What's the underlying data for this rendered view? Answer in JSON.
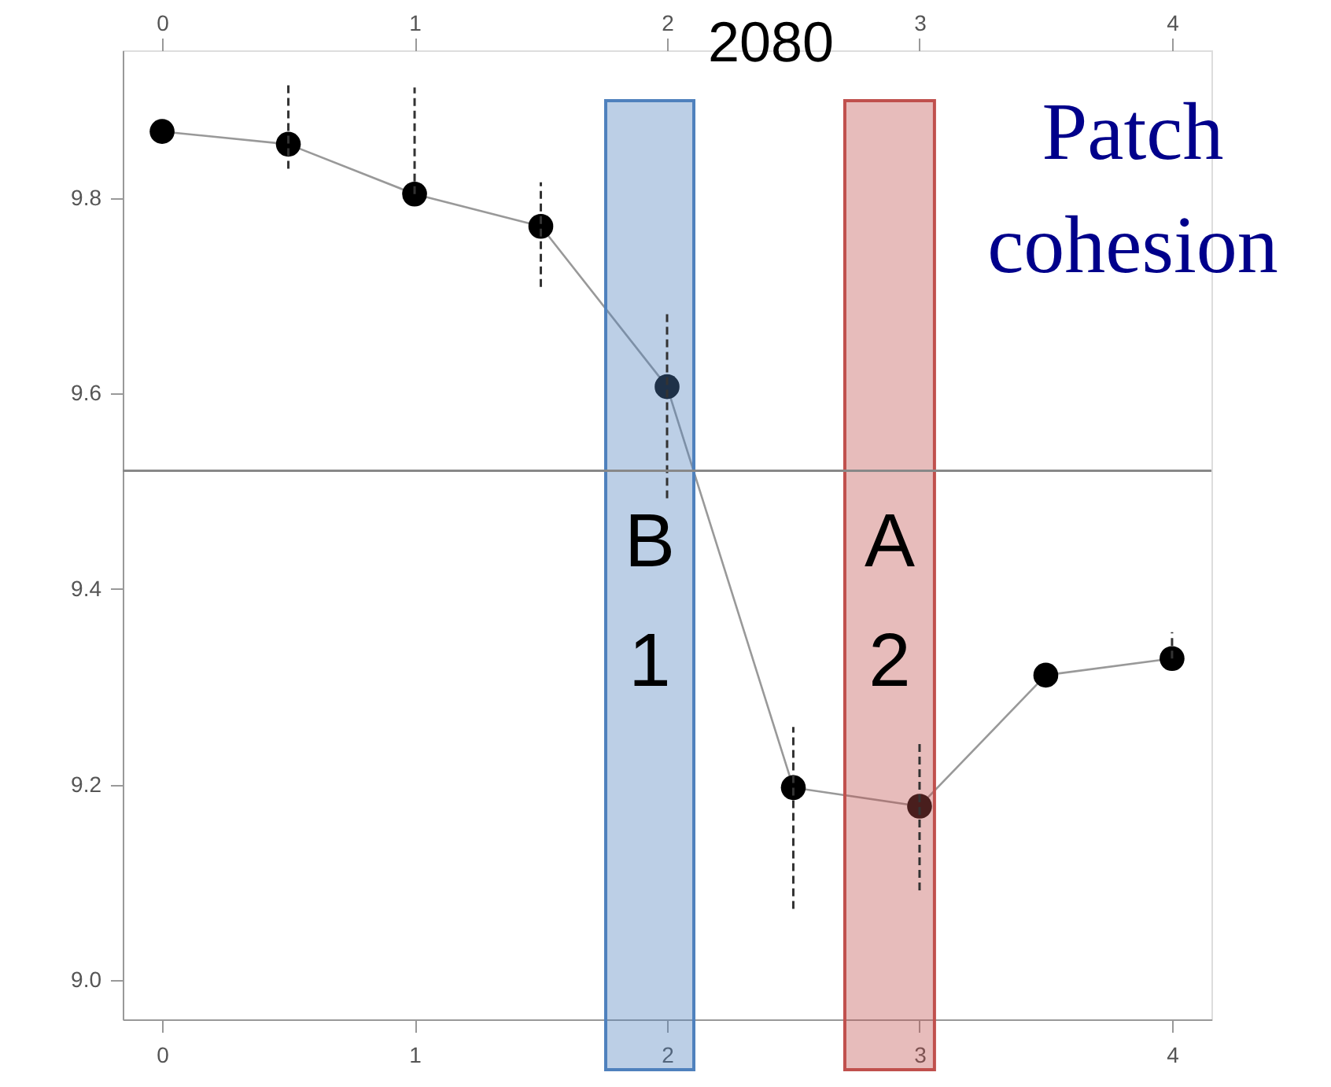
{
  "chart_data": {
    "type": "line",
    "title": "Patch cohesion",
    "x": [
      0,
      0.5,
      1,
      1.5,
      2,
      2.5,
      3,
      3.5,
      4
    ],
    "series": [
      {
        "color": "#000000",
        "values": [
          9.868,
          9.855,
          9.804,
          9.771,
          9.607,
          9.197,
          9.178,
          9.312,
          9.329
        ],
        "errors": [
          null,
          [
            9.83,
            9.916
          ],
          [
            9.804,
            9.913
          ],
          [
            9.709,
            9.816
          ],
          [
            9.493,
            9.684
          ],
          [
            9.073,
            9.259
          ],
          [
            9.092,
            9.246
          ],
          null,
          [
            9.329,
            9.356
          ]
        ]
      }
    ],
    "xlim": [
      -0.156,
      4.156
    ],
    "xticks": [
      0,
      1,
      2,
      3,
      4
    ],
    "x2lim": [
      -0.156,
      4.156
    ],
    "x2ticks": [
      0,
      1,
      2,
      3,
      4
    ],
    "ylim": [
      8.96,
      9.951
    ],
    "yticks": [
      {
        "value": 9,
        "label": "9.0"
      },
      9.2,
      9.4,
      9.6,
      9.8
    ],
    "ref_lines": [
      {
        "axis": "y",
        "value": 9.521,
        "color": "#888888"
      }
    ],
    "bands": [
      {
        "axis": "x",
        "from": 1.757,
        "to": 2.106,
        "label": "B\n1",
        "color": "#4f81bd"
      },
      {
        "axis": "x",
        "from": 2.704,
        "to": 3.059,
        "label": "A\n2",
        "color": "#c0504d"
      }
    ],
    "annotations": [
      "2080"
    ],
    "marker": "circle",
    "line_style": "solid",
    "grid": false
  }
}
